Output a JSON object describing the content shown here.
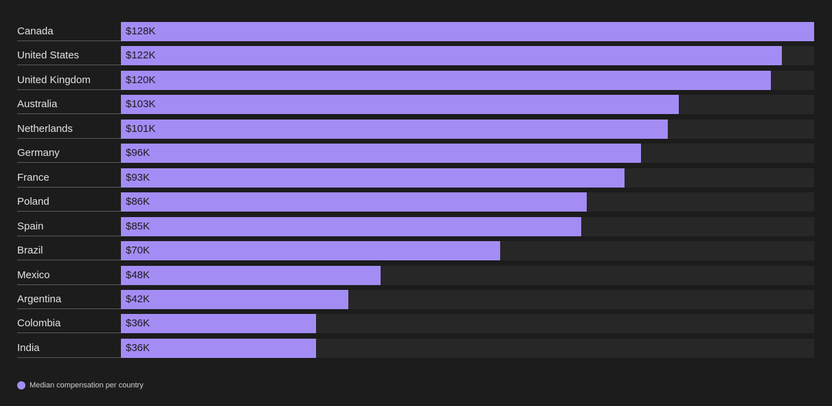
{
  "chart_data": {
    "type": "bar",
    "orientation": "horizontal",
    "categories": [
      "Canada",
      "United States",
      "United Kingdom",
      "Australia",
      "Netherlands",
      "Germany",
      "France",
      "Poland",
      "Spain",
      "Brazil",
      "Mexico",
      "Argentina",
      "Colombia",
      "India"
    ],
    "series": [
      {
        "name": "Median compensation per country",
        "values": [
          128,
          122,
          120,
          103,
          101,
          96,
          93,
          86,
          85,
          70,
          48,
          42,
          36,
          36
        ],
        "labels": [
          "$128K",
          "$122K",
          "$120K",
          "$103K",
          "$101K",
          "$96K",
          "$93K",
          "$86K",
          "$85K",
          "$70K",
          "$48K",
          "$42K",
          "$36K",
          "$36K"
        ]
      }
    ],
    "xlim": [
      0,
      128
    ],
    "grid": false,
    "legend_position": "bottom-left",
    "colors": {
      "bar": "#a48cf5",
      "track": "#272727",
      "background": "#1c1c1c"
    }
  }
}
